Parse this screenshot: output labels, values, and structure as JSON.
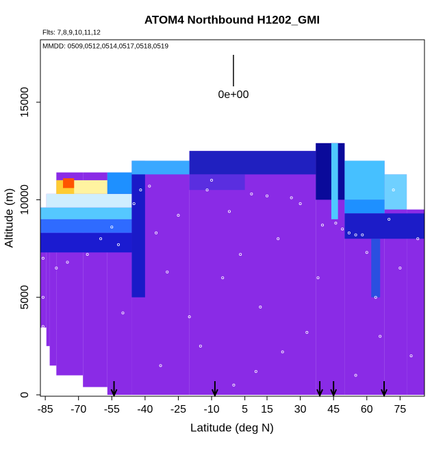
{
  "chart_data": {
    "type": "curtain",
    "title": "ATOM4 Northbound H1202_GMI",
    "subtitle": "Flts: 7,8,9,10,11,12",
    "annotation": "MMDD: 0509,0512,0514,0517,0518,0519",
    "legend_label": "0e+00",
    "x_label": "Latitude (deg N)",
    "y_label": "Altitude (m)",
    "xlim": [
      -87.2,
      86
    ],
    "ylim": [
      -70,
      18200
    ],
    "xticks": [
      -85,
      -70,
      -55,
      -40,
      -25,
      -10,
      5,
      15,
      30,
      45,
      60,
      75
    ],
    "yticks": [
      0,
      5000,
      10000,
      15000
    ],
    "cells": [
      {
        "lat": [
          -87.2,
          -84.5
        ],
        "alt": [
          3450,
          9600
        ],
        "color": "#8a2be6"
      },
      {
        "lat": [
          -84.5,
          -83
        ],
        "alt": [
          2500,
          10300
        ],
        "color": "#8a2be6"
      },
      {
        "lat": [
          -83,
          -80
        ],
        "alt": [
          1500,
          10300
        ],
        "color": "#8a2be6"
      },
      {
        "lat": [
          -80,
          -68
        ],
        "alt": [
          1000,
          11400
        ],
        "color": "#8a2be6"
      },
      {
        "lat": [
          -68,
          -57
        ],
        "alt": [
          400,
          11400
        ],
        "color": "#8a2be6"
      },
      {
        "lat": [
          -57,
          -46
        ],
        "alt": [
          0,
          11400
        ],
        "color": "#8a2be6"
      },
      {
        "lat": [
          -46,
          -20
        ],
        "alt": [
          0,
          12000
        ],
        "color": "#8a2be6"
      },
      {
        "lat": [
          -20,
          37
        ],
        "alt": [
          0,
          12500
        ],
        "color": "#8a2be6"
      },
      {
        "lat": [
          37,
          50
        ],
        "alt": [
          0,
          12900
        ],
        "color": "#8a2be6"
      },
      {
        "lat": [
          50,
          68
        ],
        "alt": [
          0,
          12000
        ],
        "color": "#8a2be6"
      },
      {
        "lat": [
          68,
          78
        ],
        "alt": [
          0,
          11300
        ],
        "color": "#8a2be6"
      },
      {
        "lat": [
          78,
          86
        ],
        "alt": [
          0,
          9500
        ],
        "color": "#8a2be6"
      },
      {
        "lat": [
          -87.2,
          -46
        ],
        "alt": [
          8300,
          9000
        ],
        "color": "#2f6bff"
      },
      {
        "lat": [
          -87.2,
          -46
        ],
        "alt": [
          7300,
          8300
        ],
        "color": "#1b1bd0"
      },
      {
        "lat": [
          -87.2,
          -46
        ],
        "alt": [
          9000,
          9600
        ],
        "color": "#55c8ff"
      },
      {
        "lat": [
          -84.5,
          -46
        ],
        "alt": [
          9600,
          10300
        ],
        "color": "#cfeeff"
      },
      {
        "lat": [
          -80,
          -57
        ],
        "alt": [
          10300,
          11000
        ],
        "color": "#fff3a0"
      },
      {
        "lat": [
          -80,
          -72
        ],
        "alt": [
          10300,
          11000
        ],
        "color": "#ffcc33"
      },
      {
        "lat": [
          -77,
          -72
        ],
        "alt": [
          10600,
          11100
        ],
        "color": "#ff5500"
      },
      {
        "lat": [
          -57,
          -46
        ],
        "alt": [
          10300,
          11400
        ],
        "color": "#1e90ff"
      },
      {
        "lat": [
          -46,
          -40
        ],
        "alt": [
          5000,
          12000
        ],
        "color": "#1a1ac8"
      },
      {
        "lat": [
          -46,
          -20
        ],
        "alt": [
          11300,
          12000
        ],
        "color": "#3aa8ff"
      },
      {
        "lat": [
          -20,
          37
        ],
        "alt": [
          11300,
          12500
        ],
        "color": "#2020c0"
      },
      {
        "lat": [
          -20,
          5
        ],
        "alt": [
          10500,
          11300
        ],
        "color": "#5a2ee0"
      },
      {
        "lat": [
          37,
          50
        ],
        "alt": [
          10000,
          12900
        ],
        "color": "#0a0a9a"
      },
      {
        "lat": [
          44,
          47
        ],
        "alt": [
          9000,
          12900
        ],
        "color": "#4fc8ff"
      },
      {
        "lat": [
          50,
          68
        ],
        "alt": [
          10000,
          12000
        ],
        "color": "#46c0ff"
      },
      {
        "lat": [
          50,
          68
        ],
        "alt": [
          9300,
          10000
        ],
        "color": "#1e90ff"
      },
      {
        "lat": [
          68,
          78
        ],
        "alt": [
          9500,
          11300
        ],
        "color": "#6fd0ff"
      },
      {
        "lat": [
          50,
          86
        ],
        "alt": [
          8000,
          9300
        ],
        "color": "#1c1cc8"
      },
      {
        "lat": [
          62,
          66
        ],
        "alt": [
          5000,
          8000
        ],
        "color": "#2a4fe0"
      }
    ],
    "points": {
      "color": "#ffffff",
      "x": [
        -86,
        -86,
        -86,
        -80,
        -75,
        -66,
        -60,
        -55,
        -52,
        -50,
        -45,
        -42,
        -38,
        -35,
        -30,
        -25,
        -20,
        -15,
        -12,
        -10,
        -5,
        -2,
        3,
        8,
        12,
        15,
        20,
        22,
        26,
        30,
        33,
        38,
        40,
        46,
        49,
        52,
        55,
        58,
        60,
        64,
        66,
        70,
        72,
        75,
        80,
        83,
        -33,
        0,
        55,
        10
      ],
      "y": [
        7000,
        5000,
        3500,
        6500,
        6800,
        7200,
        8000,
        8600,
        7700,
        4200,
        9800,
        10500,
        10700,
        8300,
        6300,
        9200,
        4000,
        2500,
        10500,
        11000,
        6000,
        9400,
        7200,
        10300,
        4500,
        10200,
        8000,
        2200,
        10100,
        9800,
        3200,
        6000,
        8700,
        8800,
        8500,
        8300,
        8200,
        8200,
        7300,
        5000,
        3000,
        9000,
        10500,
        6500,
        2000,
        8000,
        1500,
        500,
        1000,
        1200
      ]
    },
    "arrows": [
      -54,
      -8.5,
      38.8,
      45,
      67.8
    ]
  }
}
